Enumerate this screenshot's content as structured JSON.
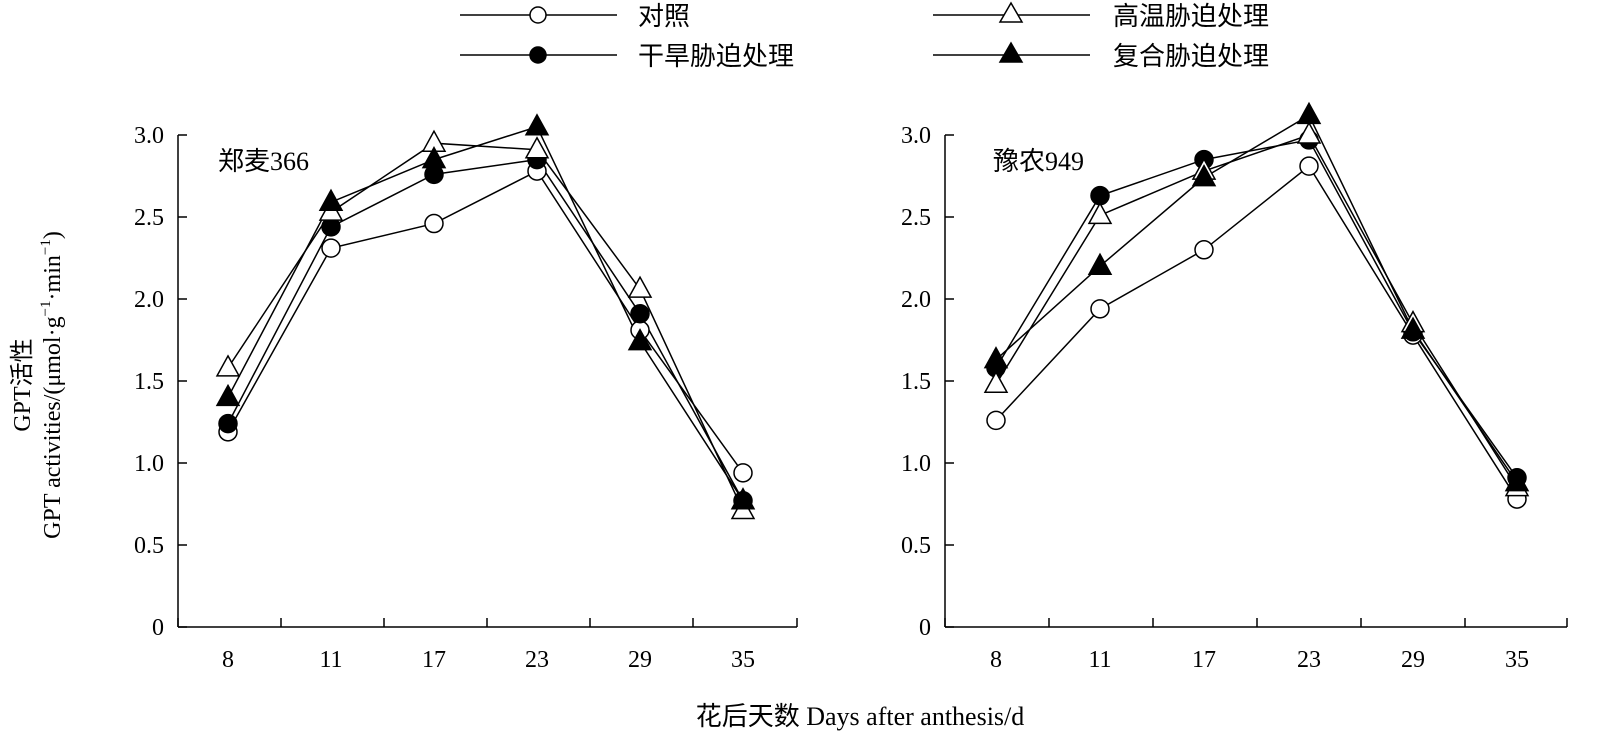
{
  "legend": {
    "items": [
      {
        "label": "对照",
        "marker": "circle-open"
      },
      {
        "label": "干旱胁迫处理",
        "marker": "circle-filled"
      },
      {
        "label": "高温胁迫处理",
        "marker": "triangle-open"
      },
      {
        "label": "复合胁迫处理",
        "marker": "triangle-filled"
      }
    ]
  },
  "ylabel_cn": "GPT活性",
  "ylabel_en": "GPT activities/(μmol·g",
  "ylabel_en_sup1": "−1",
  "ylabel_en_mid": "·min",
  "ylabel_en_sup2": "−1",
  "ylabel_en_end": ")",
  "xlabel": "花后天数 Days after anthesis/d",
  "chart_data": [
    {
      "type": "line",
      "title": "郑麦366",
      "categories": [
        "8",
        "11",
        "17",
        "23",
        "29",
        "35"
      ],
      "ylim": [
        0,
        3.0
      ],
      "yticks": [
        "0",
        "0.5",
        "1.0",
        "1.5",
        "2.0",
        "2.5",
        "3.0"
      ],
      "series": [
        {
          "name": "对照",
          "marker": "circle-open",
          "values": [
            1.19,
            2.31,
            2.46,
            2.78,
            1.81,
            0.94
          ]
        },
        {
          "name": "干旱胁迫处理",
          "marker": "circle-filled",
          "values": [
            1.24,
            2.44,
            2.76,
            2.85,
            1.91,
            0.77
          ]
        },
        {
          "name": "高温胁迫处理",
          "marker": "triangle-open",
          "values": [
            1.58,
            2.53,
            2.95,
            2.91,
            2.06,
            0.71
          ]
        },
        {
          "name": "复合胁迫处理",
          "marker": "triangle-filled",
          "values": [
            1.4,
            2.59,
            2.85,
            3.05,
            1.74,
            0.77
          ]
        }
      ]
    },
    {
      "type": "line",
      "title": "豫农949",
      "categories": [
        "8",
        "11",
        "17",
        "23",
        "29",
        "35"
      ],
      "ylim": [
        0,
        3.0
      ],
      "yticks": [
        "0",
        "0.5",
        "1.0",
        "1.5",
        "2.0",
        "2.5",
        "3.0"
      ],
      "series": [
        {
          "name": "对照",
          "marker": "circle-open",
          "values": [
            1.26,
            1.94,
            2.3,
            2.81,
            1.78,
            0.78
          ]
        },
        {
          "name": "干旱胁迫处理",
          "marker": "circle-filled",
          "values": [
            1.58,
            2.63,
            2.85,
            2.97,
            1.8,
            0.91
          ]
        },
        {
          "name": "高温胁迫处理",
          "marker": "triangle-open",
          "values": [
            1.48,
            2.51,
            2.78,
            3.0,
            1.85,
            0.85
          ]
        },
        {
          "name": "复合胁迫处理",
          "marker": "triangle-filled",
          "values": [
            1.63,
            2.2,
            2.74,
            3.12,
            1.81,
            0.88
          ]
        }
      ]
    }
  ]
}
